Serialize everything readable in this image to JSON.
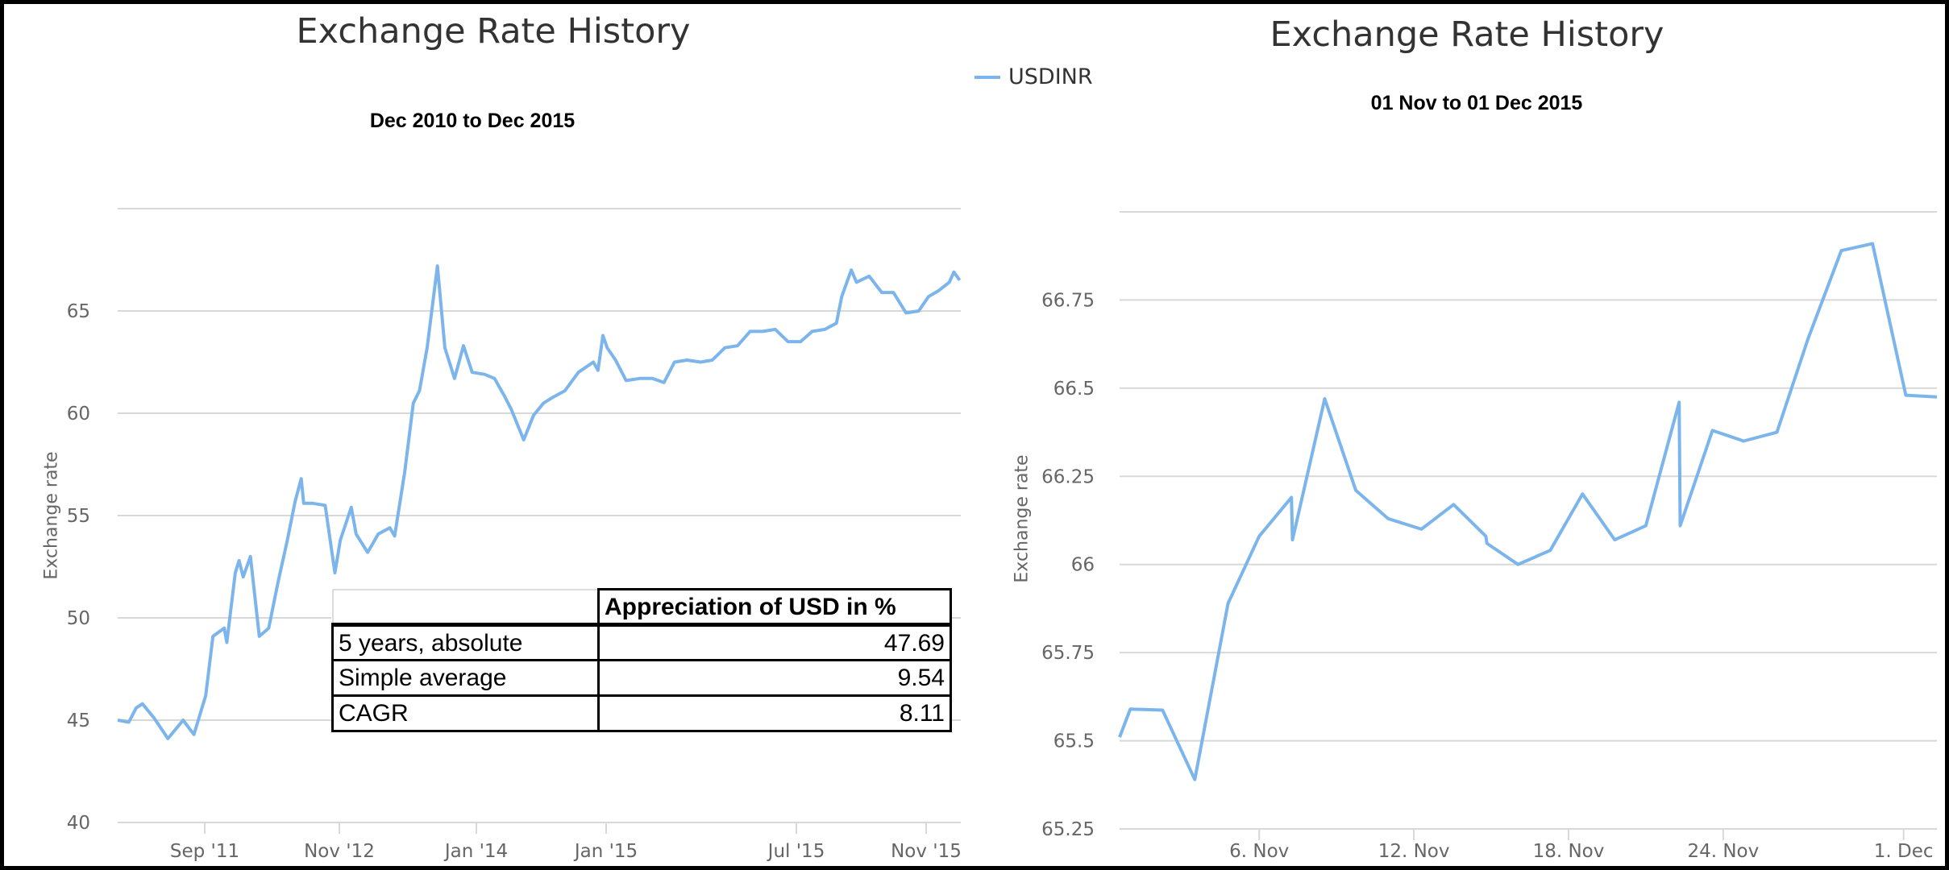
{
  "colors": {
    "series": "#7cb5ec",
    "grid": "#d8d8d8",
    "axis_text": "#666666",
    "title": "#333333"
  },
  "legend": {
    "label": "USDINR",
    "position": "top-center"
  },
  "table": {
    "header": [
      "",
      "Appreciation of USD in %"
    ],
    "rows": [
      {
        "label": "5 years, absolute",
        "value": "47.69"
      },
      {
        "label": "Simple average",
        "value": "9.54"
      },
      {
        "label": "CAGR",
        "value": "8.11"
      }
    ]
  },
  "chart_data": [
    {
      "type": "line",
      "title": "Exchange Rate History",
      "subtitle": "Dec 2010 to Dec 2015",
      "ylabel": "Exchange rate",
      "xlabel": "",
      "ylim": [
        40,
        70
      ],
      "yticks": [
        "40",
        "45",
        "50",
        "55",
        "60",
        "65"
      ],
      "grid": true,
      "xrange": [
        "2010-12-01",
        "2015-12-01"
      ],
      "xticks": [
        {
          "label": "Sep '11",
          "date": "2011-09-01"
        },
        {
          "label": "Nov '12",
          "date": "2012-11-01"
        },
        {
          "label": "Jan '14",
          "date": "2014-01-01"
        },
        {
          "label": "Jan '15",
          "date": "2015-01-01"
        },
        {
          "label": "Jul '15",
          "date": "2015-07-01"
        },
        {
          "label": "Nov '15",
          "date": "2015-11-01"
        }
      ],
      "series": [
        {
          "name": "USDINR",
          "points": [
            [
              "2010-12-01",
              45.0
            ],
            [
              "2011-01-05",
              44.9
            ],
            [
              "2011-01-28",
              45.6
            ],
            [
              "2011-02-17",
              45.8
            ],
            [
              "2011-03-26",
              45.1
            ],
            [
              "2011-05-08",
              44.1
            ],
            [
              "2011-06-25",
              45.0
            ],
            [
              "2011-07-29",
              44.3
            ],
            [
              "2011-09-04",
              46.2
            ],
            [
              "2011-09-27",
              49.1
            ],
            [
              "2011-11-02",
              49.5
            ],
            [
              "2011-11-10",
              48.8
            ],
            [
              "2011-12-07",
              52.2
            ],
            [
              "2011-12-19",
              52.8
            ],
            [
              "2012-01-01",
              52.0
            ],
            [
              "2012-01-24",
              53.0
            ],
            [
              "2012-02-21",
              49.1
            ],
            [
              "2012-03-22",
              49.5
            ],
            [
              "2012-04-20",
              51.7
            ],
            [
              "2012-05-20",
              53.8
            ],
            [
              "2012-06-14",
              55.7
            ],
            [
              "2012-07-03",
              56.8
            ],
            [
              "2012-07-11",
              55.6
            ],
            [
              "2012-08-08",
              55.6
            ],
            [
              "2012-09-17",
              55.5
            ],
            [
              "2012-10-18",
              52.2
            ],
            [
              "2012-11-04",
              53.8
            ],
            [
              "2012-12-08",
              55.4
            ],
            [
              "2012-12-23",
              54.1
            ],
            [
              "2013-01-28",
              53.2
            ],
            [
              "2013-03-02",
              54.1
            ],
            [
              "2013-04-07",
              54.4
            ],
            [
              "2013-04-22",
              54.0
            ],
            [
              "2013-05-23",
              57.1
            ],
            [
              "2013-06-19",
              60.5
            ],
            [
              "2013-07-08",
              61.1
            ],
            [
              "2013-08-01",
              63.2
            ],
            [
              "2013-09-02",
              67.2
            ],
            [
              "2013-09-25",
              63.2
            ],
            [
              "2013-10-25",
              61.7
            ],
            [
              "2013-11-22",
              63.3
            ],
            [
              "2013-12-19",
              62.0
            ],
            [
              "2014-01-24",
              61.9
            ],
            [
              "2014-02-21",
              61.7
            ],
            [
              "2014-03-19",
              60.9
            ],
            [
              "2014-04-09",
              60.2
            ],
            [
              "2014-05-14",
              58.7
            ],
            [
              "2014-06-11",
              59.9
            ],
            [
              "2014-07-09",
              60.5
            ],
            [
              "2014-08-06",
              60.8
            ],
            [
              "2014-09-07",
              61.1
            ],
            [
              "2014-10-15",
              62.0
            ],
            [
              "2014-11-26",
              62.5
            ],
            [
              "2014-12-09",
              62.1
            ],
            [
              "2014-12-23",
              63.8
            ],
            [
              "2015-01-02",
              63.2
            ],
            [
              "2015-01-10",
              62.6
            ],
            [
              "2015-01-20",
              61.6
            ],
            [
              "2015-02-02",
              61.7
            ],
            [
              "2015-02-14",
              61.7
            ],
            [
              "2015-02-25",
              61.5
            ],
            [
              "2015-03-07",
              62.5
            ],
            [
              "2015-03-19",
              62.6
            ],
            [
              "2015-04-01",
              62.5
            ],
            [
              "2015-04-12",
              62.6
            ],
            [
              "2015-04-24",
              63.2
            ],
            [
              "2015-05-06",
              63.3
            ],
            [
              "2015-05-18",
              64.0
            ],
            [
              "2015-05-30",
              64.0
            ],
            [
              "2015-06-11",
              64.1
            ],
            [
              "2015-06-23",
              63.5
            ],
            [
              "2015-07-05",
              63.5
            ],
            [
              "2015-07-16",
              64.0
            ],
            [
              "2015-07-28",
              64.1
            ],
            [
              "2015-08-08",
              64.4
            ],
            [
              "2015-08-13",
              65.7
            ],
            [
              "2015-08-22",
              67.0
            ],
            [
              "2015-08-27",
              66.4
            ],
            [
              "2015-09-08",
              66.7
            ],
            [
              "2015-09-20",
              65.9
            ],
            [
              "2015-10-01",
              65.9
            ],
            [
              "2015-10-13",
              64.9
            ],
            [
              "2015-10-25",
              65.0
            ],
            [
              "2015-11-03",
              65.7
            ],
            [
              "2015-11-12",
              66.0
            ],
            [
              "2015-11-21",
              66.4
            ],
            [
              "2015-11-25",
              66.9
            ],
            [
              "2015-11-30",
              66.5
            ]
          ]
        }
      ]
    },
    {
      "type": "line",
      "title": "Exchange Rate History",
      "subtitle": "01 Nov to 01 Dec 2015",
      "ylabel": "Exchange rate",
      "xlabel": "",
      "ylim": [
        65.25,
        67.0
      ],
      "yticks": [
        "65.25",
        "65.5",
        "65.75",
        "66",
        "66.25",
        "66.5",
        "66.75"
      ],
      "grid": true,
      "xrange": [
        "2015-10-31T14:00",
        "2015-12-02T07:00"
      ],
      "xticks": [
        {
          "label": "6. Nov",
          "date": "2015-11-06T00:00"
        },
        {
          "label": "12. Nov",
          "date": "2015-11-12T00:00"
        },
        {
          "label": "18. Nov",
          "date": "2015-11-18T00:00"
        },
        {
          "label": "24. Nov",
          "date": "2015-11-24T00:00"
        },
        {
          "label": "1. Dec",
          "date": "2015-12-01T00:00"
        }
      ],
      "series": [
        {
          "name": "USDINR",
          "points": [
            [
              "2015-10-31T14:00",
              65.51
            ],
            [
              "2015-11-01T00:00",
              65.59
            ],
            [
              "2015-11-02T06:00",
              65.587
            ],
            [
              "2015-11-03T12:00",
              65.39
            ],
            [
              "2015-11-04T19:00",
              65.89
            ],
            [
              "2015-11-06T00:00",
              66.08
            ],
            [
              "2015-11-07T06:00",
              66.19
            ],
            [
              "2015-11-07T07:00",
              66.07
            ],
            [
              "2015-11-08T13:00",
              66.47
            ],
            [
              "2015-11-09T18:00",
              66.21
            ],
            [
              "2015-11-11T00:00",
              66.13
            ],
            [
              "2015-11-12T07:00",
              66.1
            ],
            [
              "2015-11-13T13:00",
              66.17
            ],
            [
              "2015-11-14T19:00",
              66.08
            ],
            [
              "2015-11-14T20:00",
              66.06
            ],
            [
              "2015-11-16T01:00",
              66.0
            ],
            [
              "2015-11-17T07:00",
              66.04
            ],
            [
              "2015-11-18T13:00",
              66.2
            ],
            [
              "2015-11-19T19:00",
              66.07
            ],
            [
              "2015-11-21T00:00",
              66.11
            ],
            [
              "2015-11-22T07:00",
              66.46
            ],
            [
              "2015-11-22T08:00",
              66.11
            ],
            [
              "2015-11-23T14:00",
              66.38
            ],
            [
              "2015-11-24T19:00",
              66.35
            ],
            [
              "2015-11-26T02:00",
              66.375
            ],
            [
              "2015-11-27T07:00",
              66.64
            ],
            [
              "2015-11-28T14:00",
              66.89
            ],
            [
              "2015-11-29T19:00",
              66.91
            ],
            [
              "2015-12-01T02:00",
              66.48
            ],
            [
              "2015-12-02T07:00",
              66.475
            ]
          ]
        }
      ]
    }
  ]
}
